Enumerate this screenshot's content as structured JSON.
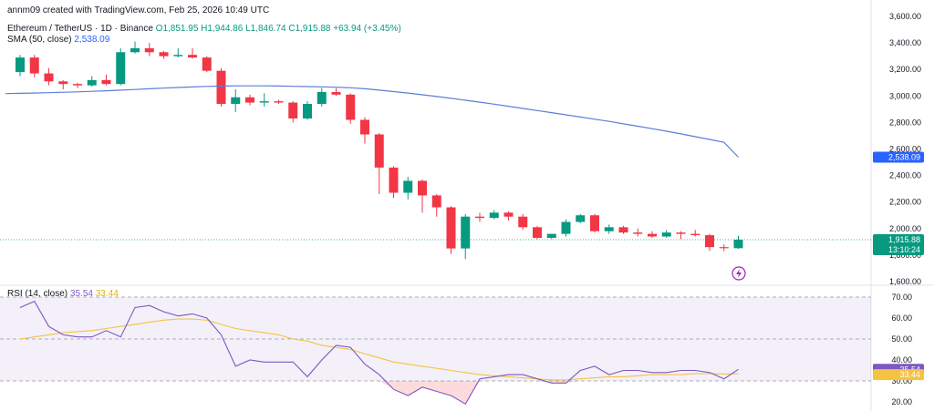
{
  "header": {
    "watermark": "annm09 created with TradingView.com, Feb 25, 2026 10:49 UTC",
    "symbol": "Ethereum / TetherUS · 1D · Binance",
    "ohlc": "O1,851.95  H1,944.86  L1,846.74  C1,915.88  +63.94 (+3.45%)",
    "sma_label": "SMA (50, close)",
    "sma_value": "2,538.09",
    "rsi_label": "RSI (14, close)",
    "rsi_value": "35.54",
    "rsi_ma_value": "33.44"
  },
  "colors": {
    "up": "#089981",
    "down": "#f23645",
    "sma": "#5b7fd6",
    "rsi": "#7e57c2",
    "rsi_ma": "#f5c342",
    "price_tag": "#089981",
    "sma_tag": "#2962ff"
  },
  "chart_data": [
    {
      "type": "candlestick",
      "ylim": [
        1600,
        3600
      ],
      "y_ticks": [
        1600,
        1800,
        2000,
        2200,
        2400,
        2600,
        2800,
        3000,
        3200,
        3400,
        3600
      ],
      "y_tick_labels": [
        "1,600.00",
        "1,800.00",
        "2,000.00",
        "2,200.00",
        "2,400.00",
        "2,600.00",
        "2,800.00",
        "3,000.00",
        "3,200.00",
        "3,400.00",
        "3,600.00"
      ],
      "candles": [
        [
          3180,
          3310,
          3150,
          3290
        ],
        [
          3290,
          3310,
          3140,
          3170
        ],
        [
          3170,
          3210,
          3080,
          3110
        ],
        [
          3110,
          3120,
          3050,
          3090
        ],
        [
          3090,
          3100,
          3060,
          3080
        ],
        [
          3080,
          3150,
          3070,
          3120
        ],
        [
          3120,
          3160,
          3080,
          3090
        ],
        [
          3090,
          3360,
          3080,
          3330
        ],
        [
          3330,
          3410,
          3320,
          3360
        ],
        [
          3360,
          3400,
          3300,
          3330
        ],
        [
          3330,
          3340,
          3280,
          3300
        ],
        [
          3300,
          3360,
          3290,
          3310
        ],
        [
          3310,
          3360,
          3280,
          3290
        ],
        [
          3290,
          3300,
          3180,
          3190
        ],
        [
          3190,
          3210,
          2920,
          2940
        ],
        [
          2940,
          3050,
          2880,
          2990
        ],
        [
          2990,
          3010,
          2930,
          2950
        ],
        [
          2950,
          3020,
          2920,
          2960
        ],
        [
          2960,
          2970,
          2940,
          2950
        ],
        [
          2950,
          2960,
          2800,
          2830
        ],
        [
          2830,
          2960,
          2820,
          2940
        ],
        [
          2940,
          3060,
          2920,
          3030
        ],
        [
          3030,
          3060,
          3000,
          3010
        ],
        [
          3010,
          3020,
          2790,
          2820
        ],
        [
          2820,
          2840,
          2640,
          2710
        ],
        [
          2710,
          2720,
          2260,
          2460
        ],
        [
          2460,
          2470,
          2230,
          2270
        ],
        [
          2270,
          2390,
          2220,
          2360
        ],
        [
          2360,
          2370,
          2120,
          2250
        ],
        [
          2250,
          2260,
          2090,
          2160
        ],
        [
          2160,
          2170,
          1810,
          1850
        ],
        [
          1850,
          2110,
          1770,
          2090
        ],
        [
          2090,
          2120,
          2050,
          2080
        ],
        [
          2080,
          2140,
          2070,
          2120
        ],
        [
          2120,
          2130,
          2060,
          2090
        ],
        [
          2090,
          2110,
          1990,
          2010
        ],
        [
          2010,
          2020,
          1920,
          1930
        ],
        [
          1930,
          1960,
          1920,
          1960
        ],
        [
          1960,
          2070,
          1940,
          2050
        ],
        [
          2050,
          2110,
          2040,
          2100
        ],
        [
          2100,
          2110,
          1970,
          1980
        ],
        [
          1980,
          2030,
          1960,
          2010
        ],
        [
          2010,
          2020,
          1960,
          1970
        ],
        [
          1970,
          2000,
          1940,
          1960
        ],
        [
          1960,
          1980,
          1930,
          1940
        ],
        [
          1940,
          1990,
          1930,
          1970
        ],
        [
          1970,
          1980,
          1920,
          1960
        ],
        [
          1960,
          1990,
          1940,
          1950
        ],
        [
          1950,
          1960,
          1830,
          1860
        ],
        [
          1860,
          1880,
          1830,
          1852
        ],
        [
          1852,
          1945,
          1847,
          1916
        ]
      ],
      "sma": [
        3020,
        3022,
        3025,
        3028,
        3031,
        3035,
        3039,
        3044,
        3049,
        3054,
        3059,
        3064,
        3068,
        3072,
        3074,
        3076,
        3076,
        3076,
        3075,
        3073,
        3071,
        3069,
        3066,
        3062,
        3054,
        3044,
        3033,
        3022,
        3009,
        2996,
        2982,
        2968,
        2953,
        2938,
        2922,
        2906,
        2890,
        2874,
        2858,
        2841,
        2825,
        2808,
        2790,
        2772,
        2753,
        2734,
        2714,
        2693,
        2672,
        2650,
        2538
      ],
      "last_price_tag": "1,915.88",
      "countdown_tag": "13:10:24",
      "sma_tag": "2,538.09"
    },
    {
      "type": "line",
      "ylim": [
        20,
        70
      ],
      "y_ticks": [
        20,
        30,
        40,
        50,
        60,
        70
      ],
      "y_tick_labels": [
        "20.00",
        "30.00",
        "40.00",
        "50.00",
        "60.00",
        "70.00"
      ],
      "bands": [
        30,
        50,
        70
      ],
      "rsi": [
        65,
        68,
        56,
        52,
        51,
        51,
        54,
        51,
        65,
        66,
        63,
        61,
        62,
        60,
        52,
        37,
        40,
        39,
        39,
        39,
        32,
        40,
        47,
        46,
        38,
        33,
        26,
        23,
        27,
        25,
        23,
        19,
        31,
        32,
        33,
        33,
        31,
        29,
        29,
        35,
        37,
        33,
        35,
        35,
        34,
        34,
        35,
        35,
        34,
        31,
        35.54
      ],
      "rsi_ma": [
        50,
        51,
        52,
        53,
        53.5,
        54,
        55,
        56,
        57,
        58,
        59,
        59.5,
        59.5,
        59,
        57,
        55,
        54,
        53,
        52,
        50,
        49,
        47,
        46,
        45,
        43,
        41,
        39,
        38,
        37,
        36,
        35,
        34,
        33,
        32.5,
        32,
        31.5,
        31,
        30.5,
        30.5,
        31,
        31.5,
        32,
        32,
        32.5,
        33,
        33,
        33,
        33.5,
        33.5,
        33.3,
        33.44
      ],
      "rsi_tag": "35.54",
      "rsi_ma_tag": "33.44"
    }
  ]
}
